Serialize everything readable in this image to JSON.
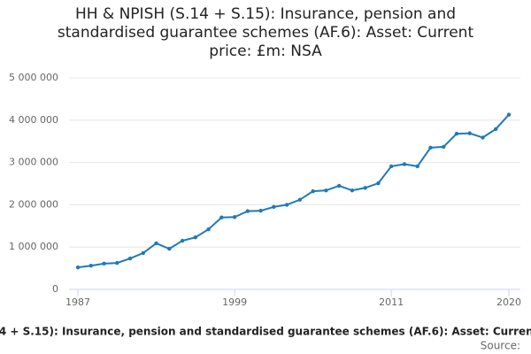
{
  "chart_data": {
    "type": "line",
    "title": "HH & NPISH (S.14 + S.15): Insurance, pension and standardised guarantee schemes (AF.6): Asset: Current price: £m: NSA",
    "source_label": "Source:",
    "x": [
      1987,
      1988,
      1989,
      1990,
      1991,
      1992,
      1993,
      1994,
      1995,
      1996,
      1997,
      1998,
      1999,
      2000,
      2001,
      2002,
      2003,
      2004,
      2005,
      2006,
      2007,
      2008,
      2009,
      2010,
      2011,
      2012,
      2013,
      2014,
      2015,
      2016,
      2017,
      2018,
      2019,
      2020
    ],
    "series": [
      {
        "color": "#1f7ab8",
        "values": [
          520000,
          560000,
          610000,
          625000,
          730000,
          860000,
          1090000,
          960000,
          1150000,
          1230000,
          1420000,
          1700000,
          1710000,
          1850000,
          1860000,
          1950000,
          2000000,
          2120000,
          2320000,
          2340000,
          2450000,
          2340000,
          2400000,
          2510000,
          2910000,
          2960000,
          2910000,
          3350000,
          3370000,
          3680000,
          3690000,
          3590000,
          3790000,
          4130000
        ]
      }
    ],
    "xlim": [
      1987,
      2020
    ],
    "xticks": [
      1987,
      1999,
      2011,
      2020
    ],
    "ylim": [
      0,
      5000000
    ],
    "yticks": [
      0,
      {
        "value": 1000000,
        "label": "1 000 000"
      },
      {
        "value": 2000000,
        "label": "2 000 000"
      },
      {
        "value": 3000000,
        "label": "3 000 000"
      },
      {
        "value": 4000000,
        "label": "4 000 000"
      },
      {
        "value": 5000000,
        "label": "5 000 000"
      }
    ],
    "grid": true
  }
}
